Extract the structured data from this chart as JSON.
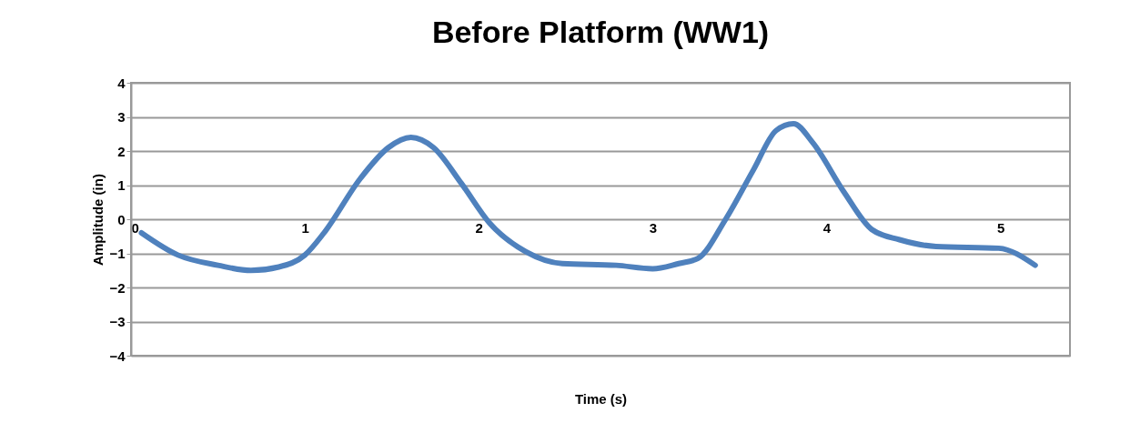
{
  "chart_data": {
    "type": "line",
    "title": "Before Platform (WW1)",
    "xlabel": "Time (s)",
    "ylabel": "Amplitude (in)",
    "x": [
      0.06,
      0.27,
      0.5,
      0.69,
      0.85,
      1.0,
      1.11,
      1.32,
      1.48,
      1.61,
      1.74,
      1.9,
      2.06,
      2.27,
      2.48,
      2.79,
      3.0,
      3.15,
      3.26,
      3.42,
      3.58,
      3.71,
      3.81,
      3.92,
      4.1,
      4.26,
      4.42,
      4.63,
      4.99,
      5.2
    ],
    "series": [
      {
        "color": "#4f81bd",
        "values": [
          -0.4,
          -1.05,
          -1.35,
          -1.5,
          -1.4,
          -1.05,
          -0.4,
          1.2,
          2.1,
          2.4,
          2.1,
          1.05,
          -0.1,
          -0.95,
          -1.3,
          -1.35,
          -1.45,
          -1.3,
          -1.15,
          0,
          1.45,
          2.6,
          2.8,
          2.25,
          0.8,
          -0.3,
          -0.6,
          -0.8,
          -0.85,
          -1.35
        ]
      }
    ],
    "xlim": [
      0,
      5.4
    ],
    "xticks": [
      0,
      1,
      2,
      3,
      4,
      5
    ],
    "ylim": [
      -4,
      4
    ],
    "yticks": [
      -4,
      -3,
      -2,
      -1,
      0,
      1,
      2,
      3,
      4
    ],
    "grid": "y",
    "marker": "none",
    "line_style": "solid"
  }
}
